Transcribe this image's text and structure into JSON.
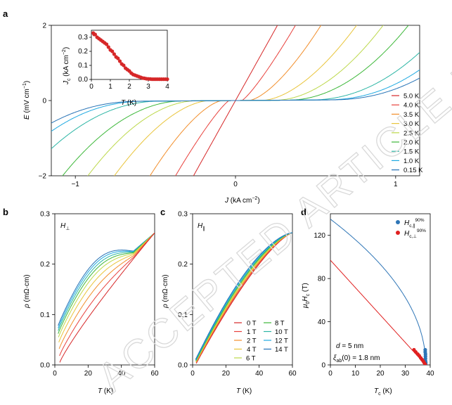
{
  "watermark": "ACCEPTED ARTICLE PREVIEW",
  "chart_data": [
    {
      "panel": "a",
      "type": "line",
      "xlabel": "J (kA cm⁻²)",
      "ylabel": "E (mV cm⁻¹)",
      "xlim": [
        -1.15,
        1.15
      ],
      "ylim": [
        -2,
        2
      ],
      "xticks": [
        "−1",
        "0",
        "1"
      ],
      "xtick_values": [
        -1,
        0,
        1
      ],
      "yticks": [
        "−2",
        "0",
        "2"
      ],
      "ytick_values": [
        -2,
        0,
        2
      ],
      "legend_position": "right",
      "series": [
        {
          "name": "5.0 K",
          "color": "#d62728",
          "jc": 0.0,
          "k": 7.6,
          "n": 1.0
        },
        {
          "name": "4.0 K",
          "color": "#e8413c",
          "jc": 0.04,
          "k": 7.4,
          "n": 1.2
        },
        {
          "name": "3.5 K",
          "color": "#f28e2b",
          "jc": 0.085,
          "k": 6.6,
          "n": 1.5
        },
        {
          "name": "3.0 K",
          "color": "#e9c43a",
          "jc": 0.17,
          "k": 4.9,
          "n": 1.7
        },
        {
          "name": "2.5 K",
          "color": "#bcd84a",
          "jc": 0.25,
          "k": 4.2,
          "n": 1.9
        },
        {
          "name": "2.0 K",
          "color": "#3db83a",
          "jc": 0.33,
          "k": 3.5,
          "n": 2.0
        },
        {
          "name": "1.5 K",
          "color": "#2bb5a4",
          "jc": 0.47,
          "k": 2.8,
          "n": 2.1
        },
        {
          "name": "1.0 K",
          "color": "#1ea9e1",
          "jc": 0.56,
          "k": 2.5,
          "n": 2.2
        },
        {
          "name": "0.15 K",
          "color": "#2471b5",
          "jc": 0.6,
          "k": 2.1,
          "n": 2.2
        }
      ],
      "inset": {
        "type": "scatter",
        "xlabel": "T (K)",
        "ylabel": "J_c (kA cm⁻²)",
        "xlim": [
          0,
          4
        ],
        "ylim": [
          0,
          0.35
        ],
        "xticks": [
          "0",
          "1",
          "2",
          "3",
          "4"
        ],
        "yticks": [
          "0.0",
          "0.1",
          "0.2",
          "0.3"
        ],
        "color": "#d62728",
        "x": [
          0.1,
          0.15,
          0.2,
          0.3,
          0.4,
          0.5,
          0.6,
          0.7,
          0.8,
          0.9,
          1.0,
          1.1,
          1.2,
          1.3,
          1.4,
          1.5,
          1.6,
          1.7,
          1.8,
          1.9,
          2.0,
          2.1,
          2.2,
          2.3,
          2.4,
          2.5,
          2.6,
          2.7,
          2.8,
          2.9,
          3.0,
          3.1,
          3.2,
          3.3,
          3.4,
          3.5,
          3.6,
          3.7,
          3.8,
          3.9,
          4.0
        ],
        "y": [
          0.33,
          0.32,
          0.32,
          0.3,
          0.29,
          0.28,
          0.27,
          0.26,
          0.25,
          0.23,
          0.21,
          0.2,
          0.18,
          0.16,
          0.15,
          0.13,
          0.11,
          0.1,
          0.08,
          0.07,
          0.06,
          0.045,
          0.035,
          0.03,
          0.025,
          0.02,
          0.015,
          0.01,
          0.008,
          0.005,
          0.004,
          0.003,
          0.002,
          0.002,
          0.002,
          0.002,
          0.002,
          0.002,
          0.002,
          0.002,
          0.002
        ]
      }
    },
    {
      "panel": "b",
      "type": "line",
      "annotation": "H⊥",
      "xlabel": "T (K)",
      "ylabel": "ρ (mΩ·cm)",
      "xlim": [
        0,
        60
      ],
      "ylim": [
        0,
        0.3
      ],
      "xticks": [
        "0",
        "20",
        "40",
        "60"
      ],
      "xtick_values": [
        0,
        20,
        40,
        60
      ],
      "yticks": [
        "0.0",
        "0.1",
        "0.2",
        "0.3"
      ],
      "ytick_values": [
        0,
        0.1,
        0.2,
        0.3
      ],
      "series_names": [
        "0 T",
        "1 T",
        "2 T",
        "4 T",
        "6 T",
        "8 T",
        "10 T",
        "12 T",
        "14 T"
      ],
      "t_start": [
        3.0,
        2.8,
        2.6,
        2.4,
        2.2,
        2.0,
        2.0,
        2.0,
        2.0
      ],
      "rho_start": [
        0.005,
        0.018,
        0.032,
        0.045,
        0.055,
        0.062,
        0.068,
        0.073,
        0.078
      ],
      "shoulder": [
        0.0,
        0.012,
        0.022,
        0.03,
        0.036,
        0.04,
        0.043,
        0.046,
        0.048
      ],
      "rho_at_60K": 0.262
    },
    {
      "panel": "c",
      "type": "line",
      "annotation": "H∥",
      "xlabel": "T (K)",
      "ylabel": "ρ (mΩ·cm)",
      "xlim": [
        0,
        60
      ],
      "ylim": [
        0,
        0.3
      ],
      "xticks": [
        "0",
        "20",
        "40",
        "60"
      ],
      "xtick_values": [
        0,
        20,
        40,
        60
      ],
      "yticks": [
        "0.0",
        "0.1",
        "0.2",
        "0.3"
      ],
      "ytick_values": [
        0,
        0.1,
        0.2,
        0.3
      ],
      "legend_position": "bottom-right",
      "series": [
        {
          "name": "0 T",
          "color": "#d62728"
        },
        {
          "name": "1 T",
          "color": "#e8413c"
        },
        {
          "name": "2 T",
          "color": "#f28e2b"
        },
        {
          "name": "4 T",
          "color": "#e9c43a"
        },
        {
          "name": "6 T",
          "color": "#bcd84a"
        },
        {
          "name": "8 T",
          "color": "#3db83a"
        },
        {
          "name": "10 T",
          "color": "#2bb5a4"
        },
        {
          "name": "12 T",
          "color": "#1ea9e1"
        },
        {
          "name": "14 T",
          "color": "#2471b5"
        }
      ],
      "rho_at_60K": 0.262
    },
    {
      "panel": "d",
      "type": "scatter",
      "xlabel": "T_c (K)",
      "ylabel": "μ₀H_c (T)",
      "xlim": [
        0,
        40
      ],
      "ylim": [
        0,
        140
      ],
      "xticks": [
        "0",
        "10",
        "20",
        "30",
        "40"
      ],
      "xtick_values": [
        0,
        10,
        20,
        30,
        40
      ],
      "yticks": [
        "0",
        "40",
        "80",
        "120"
      ],
      "ytick_values": [
        0,
        40,
        80,
        120
      ],
      "legend_position": "top-right",
      "annotations": [
        "d = 5 nm",
        "ξ_ab(0) = 1.8 nm"
      ],
      "tc0": 38.2,
      "series": [
        {
          "name": "H_c,∥ 90%",
          "color": "#2e75b6",
          "fit": "sqrt",
          "h0": 135,
          "points_x": [
            38.0,
            38.0,
            38.1,
            38.1,
            38.1,
            38.1,
            38.2,
            38.2,
            38.2
          ],
          "points_y": [
            14,
            12,
            10,
            8,
            6,
            4,
            2.5,
            1.5,
            0.5
          ]
        },
        {
          "name": "H_c,⊥ 90%",
          "color": "#e02020",
          "fit": "linear",
          "h0": 97,
          "points_x": [
            33.5,
            34.2,
            35.0,
            35.6,
            36.2,
            36.7,
            37.2,
            37.6,
            38.0
          ],
          "points_y": [
            14,
            12,
            10,
            8.5,
            6.5,
            5,
            3.5,
            2,
            0.5
          ]
        }
      ]
    }
  ]
}
